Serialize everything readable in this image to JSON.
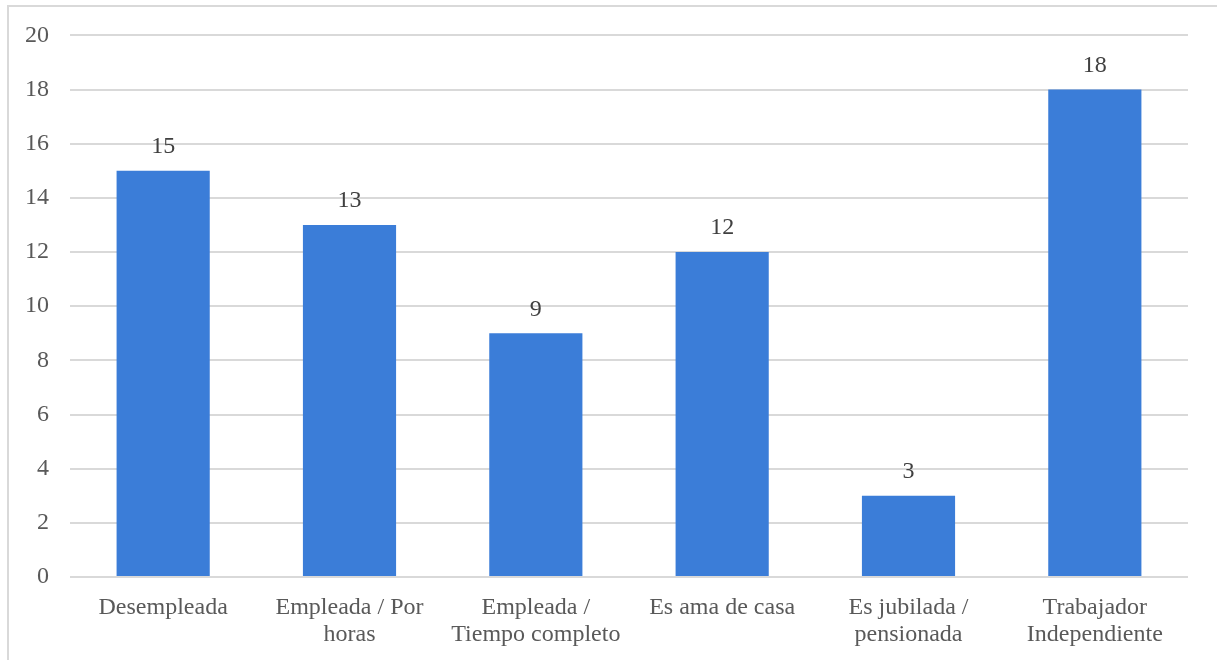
{
  "chart_data": {
    "type": "bar",
    "categories": [
      "Desempleada",
      "Empleada / Por horas",
      "Empleada / Tiempo completo",
      "Es ama de casa",
      "Es jubilada / pensionada",
      "Trabajador Independiente"
    ],
    "values": [
      15,
      13,
      9,
      12,
      3,
      18
    ],
    "color": "#3b7dd8",
    "ylim": [
      0,
      20
    ],
    "yticks": [
      0,
      2,
      4,
      6,
      8,
      10,
      12,
      14,
      16,
      18,
      20
    ],
    "grid": "y",
    "data_labels": true
  }
}
